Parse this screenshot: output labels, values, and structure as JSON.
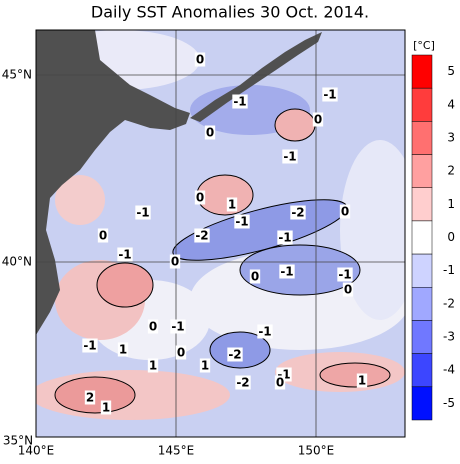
{
  "title": "Daily SST Anomalies 30 Oct. 2014.",
  "lat_labels": [
    "45°N",
    "40°N",
    "35°N"
  ],
  "lon_labels": [
    "140°E",
    "145°E",
    "150°E"
  ],
  "colorbar": {
    "unit": "[°C]",
    "ticks": [
      5,
      4,
      3,
      2,
      1,
      0,
      -1,
      -2,
      -3,
      -4,
      -5
    ]
  },
  "contour_labels": [
    "0",
    "-1",
    "-1",
    "0",
    "0",
    "-1",
    "0",
    "1",
    "-1",
    "-2",
    "0",
    "0",
    "-2",
    "-1",
    "-1",
    "-1",
    "0",
    "0",
    "-1",
    "-1",
    "0",
    "0",
    "-1",
    "-1",
    "-1",
    "1",
    "0",
    "-2",
    "1",
    "1",
    "-1",
    "-2",
    "0",
    "1",
    "2",
    "1"
  ]
}
